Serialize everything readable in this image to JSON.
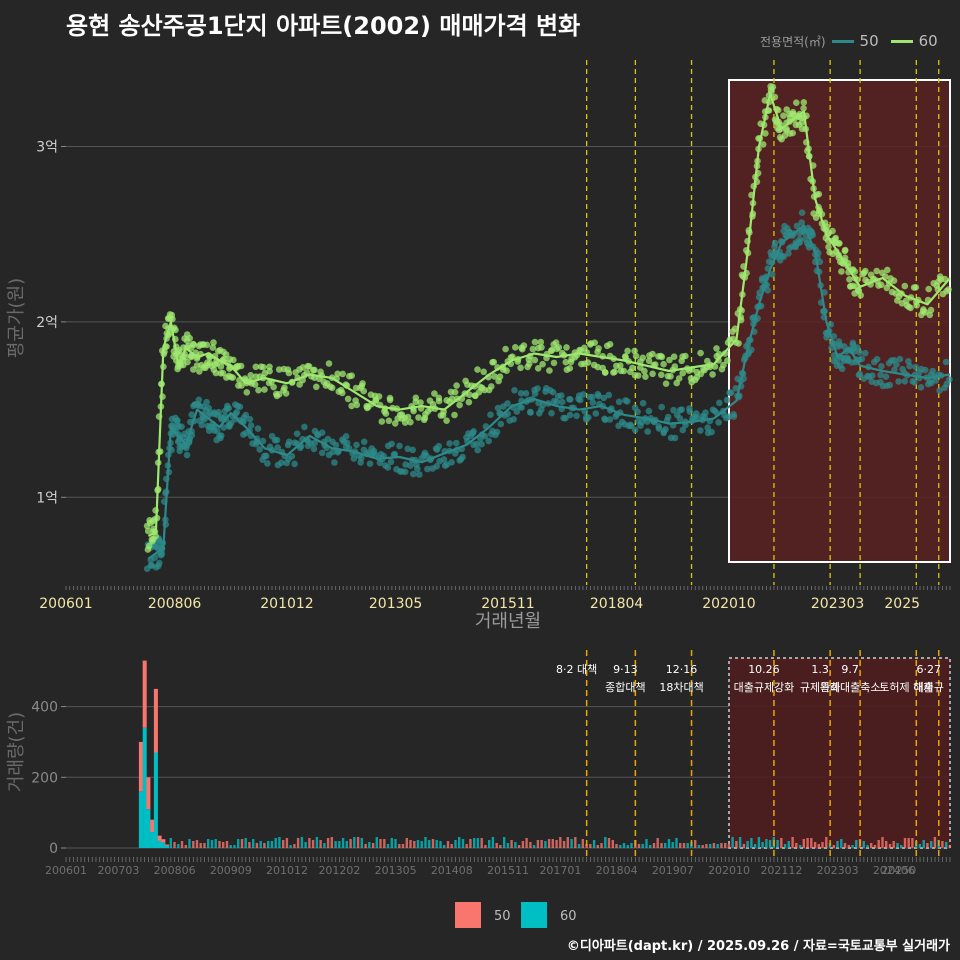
{
  "title": "용현 송산주공1단지 아파트(2002) 매매가격 변화",
  "legend_top": {
    "title": "전용면적(㎡)",
    "items": [
      {
        "label": "50",
        "color": "#2e8a8a"
      },
      {
        "label": "60",
        "color": "#9fe870"
      }
    ]
  },
  "legend_bottom": {
    "items": [
      {
        "label": "50",
        "color": "#f8766d"
      },
      {
        "label": "60",
        "color": "#00bfc4"
      }
    ]
  },
  "footer": "©디아파트(dapt.kr) / 2025.09.26 / 자료=국토교통부 실거래가",
  "chart_data": [
    {
      "type": "line",
      "xlabel": "거래년월",
      "ylabel": "평균가(원)",
      "x_ticks": [
        "200601",
        "200806",
        "201012",
        "201305",
        "201511",
        "201804",
        "202010",
        "202303",
        "2025"
      ],
      "y_ticks": [
        {
          "value": 100000000,
          "label": "1억"
        },
        {
          "value": 200000000,
          "label": "2억"
        },
        {
          "value": 300000000,
          "label": "3억"
        }
      ],
      "ylim": [
        50000000,
        355000000
      ],
      "xlim": [
        "2006-01",
        "2025-09"
      ],
      "highlight_range": [
        "2020-10",
        "2025-09"
      ],
      "policy_lines": [
        "2017-08",
        "2018-09",
        "2019-12",
        "2021-10",
        "2023-01",
        "2023-09",
        "2024-12",
        "2025-06"
      ],
      "series": [
        {
          "name": "50",
          "color": "#2e8a8a",
          "points": [
            [
              "2007-11",
              65000000
            ],
            [
              "2008-01",
              68000000
            ],
            [
              "2008-03",
              72000000
            ],
            [
              "2008-05",
              140000000
            ],
            [
              "2008-07",
              135000000
            ],
            [
              "2008-09",
              130000000
            ],
            [
              "2008-12",
              150000000
            ],
            [
              "2009-03",
              145000000
            ],
            [
              "2009-06",
              140000000
            ],
            [
              "2009-09",
              148000000
            ],
            [
              "2010-01",
              140000000
            ],
            [
              "2010-06",
              128000000
            ],
            [
              "2010-12",
              124000000
            ],
            [
              "2011-06",
              135000000
            ],
            [
              "2011-12",
              128000000
            ],
            [
              "2012-06",
              126000000
            ],
            [
              "2012-12",
              122000000
            ],
            [
              "2013-06",
              123000000
            ],
            [
              "2013-12",
              120000000
            ],
            [
              "2014-06",
              125000000
            ],
            [
              "2014-12",
              130000000
            ],
            [
              "2015-06",
              140000000
            ],
            [
              "2015-12",
              152000000
            ],
            [
              "2016-06",
              156000000
            ],
            [
              "2016-12",
              152000000
            ],
            [
              "2017-06",
              150000000
            ],
            [
              "2017-12",
              152000000
            ],
            [
              "2018-06",
              147000000
            ],
            [
              "2018-12",
              145000000
            ],
            [
              "2019-06",
              142000000
            ],
            [
              "2019-12",
              143000000
            ],
            [
              "2020-06",
              145000000
            ],
            [
              "2020-12",
              155000000
            ],
            [
              "2021-03",
              185000000
            ],
            [
              "2021-06",
              210000000
            ],
            [
              "2021-09",
              230000000
            ],
            [
              "2021-12",
              245000000
            ],
            [
              "2022-03",
              250000000
            ],
            [
              "2022-06",
              255000000
            ],
            [
              "2022-09",
              240000000
            ],
            [
              "2022-12",
              200000000
            ],
            [
              "2023-03",
              180000000
            ],
            [
              "2023-06",
              185000000
            ],
            [
              "2023-09",
              175000000
            ],
            [
              "2024-03",
              172000000
            ],
            [
              "2024-09",
              170000000
            ],
            [
              "2025-03",
              168000000
            ],
            [
              "2025-09",
              170000000
            ]
          ]
        },
        {
          "name": "60",
          "color": "#9fe870",
          "points": [
            [
              "2007-11",
              78000000
            ],
            [
              "2008-01",
              80000000
            ],
            [
              "2008-03",
              185000000
            ],
            [
              "2008-05",
              200000000
            ],
            [
              "2008-07",
              175000000
            ],
            [
              "2008-09",
              185000000
            ],
            [
              "2008-12",
              180000000
            ],
            [
              "2009-03",
              182000000
            ],
            [
              "2009-06",
              178000000
            ],
            [
              "2009-09",
              175000000
            ],
            [
              "2010-01",
              165000000
            ],
            [
              "2010-06",
              168000000
            ],
            [
              "2010-12",
              165000000
            ],
            [
              "2011-06",
              170000000
            ],
            [
              "2011-12",
              168000000
            ],
            [
              "2012-06",
              160000000
            ],
            [
              "2012-12",
              152000000
            ],
            [
              "2013-06",
              150000000
            ],
            [
              "2013-12",
              152000000
            ],
            [
              "2014-06",
              150000000
            ],
            [
              "2014-12",
              160000000
            ],
            [
              "2015-06",
              170000000
            ],
            [
              "2015-12",
              178000000
            ],
            [
              "2016-06",
              182000000
            ],
            [
              "2016-12",
              180000000
            ],
            [
              "2017-06",
              182000000
            ],
            [
              "2017-12",
              180000000
            ],
            [
              "2018-06",
              178000000
            ],
            [
              "2018-12",
              175000000
            ],
            [
              "2019-06",
              172000000
            ],
            [
              "2019-12",
              174000000
            ],
            [
              "2020-06",
              176000000
            ],
            [
              "2020-12",
              190000000
            ],
            [
              "2021-03",
              240000000
            ],
            [
              "2021-06",
              300000000
            ],
            [
              "2021-09",
              330000000
            ],
            [
              "2021-12",
              310000000
            ],
            [
              "2022-03",
              315000000
            ],
            [
              "2022-06",
              320000000
            ],
            [
              "2022-09",
              270000000
            ],
            [
              "2022-12",
              250000000
            ],
            [
              "2023-03",
              240000000
            ],
            [
              "2023-06",
              230000000
            ],
            [
              "2023-09",
              220000000
            ],
            [
              "2024-03",
              225000000
            ],
            [
              "2024-09",
              215000000
            ],
            [
              "2025-03",
              210000000
            ],
            [
              "2025-09",
              225000000
            ]
          ]
        }
      ]
    },
    {
      "type": "bar",
      "stacked": true,
      "ylabel": "거래량(건)",
      "x_ticks": [
        "200601",
        "200703",
        "200806",
        "200909",
        "201012",
        "201202",
        "201305",
        "201408",
        "201511",
        "201701",
        "201804",
        "201907",
        "202010",
        "202112",
        "202303",
        "202406",
        "20250"
      ],
      "y_ticks": [
        0,
        200,
        400
      ],
      "ylim": [
        0,
        560
      ],
      "highlight_range": [
        "2020-10",
        "2025-09"
      ],
      "policy_lines": [
        {
          "date": "2017-08",
          "label": "8·2 대책",
          "label2": ""
        },
        {
          "date": "2018-09",
          "label": "9·13",
          "label2": "종합대책"
        },
        {
          "date": "2019-12",
          "label": "12·16",
          "label2": "18차대책"
        },
        {
          "date": "2021-10",
          "label": "10.26",
          "label2": "대출규제강화"
        },
        {
          "date": "2023-01",
          "label": "1.3",
          "label2": "규제완화"
        },
        {
          "date": "2023-09",
          "label": "9.7",
          "label2": "특례대출축소"
        },
        {
          "date": "2024-12",
          "label": "",
          "label2": "토허제 해제"
        },
        {
          "date": "2025-06",
          "label": "6·27",
          "label2": "대출규"
        }
      ],
      "series": [
        {
          "name": "50",
          "color": "#f8766d",
          "bars": [
            [
              "2007-09",
              300
            ],
            [
              "2007-10",
              530
            ],
            [
              "2007-11",
              200
            ],
            [
              "2007-12",
              80
            ],
            [
              "2008-01",
              450
            ],
            [
              "2008-02",
              35
            ],
            [
              "2008-03",
              25
            ],
            [
              "2008-04",
              10
            ]
          ]
        },
        {
          "name": "60",
          "color": "#00bfc4",
          "bars": [
            [
              "2007-09",
              160
            ],
            [
              "2007-10",
              340
            ],
            [
              "2007-11",
              110
            ],
            [
              "2007-12",
              45
            ],
            [
              "2008-01",
              270
            ],
            [
              "2008-02",
              20
            ],
            [
              "2008-03",
              15
            ],
            [
              "2008-04",
              6
            ]
          ]
        }
      ]
    }
  ]
}
